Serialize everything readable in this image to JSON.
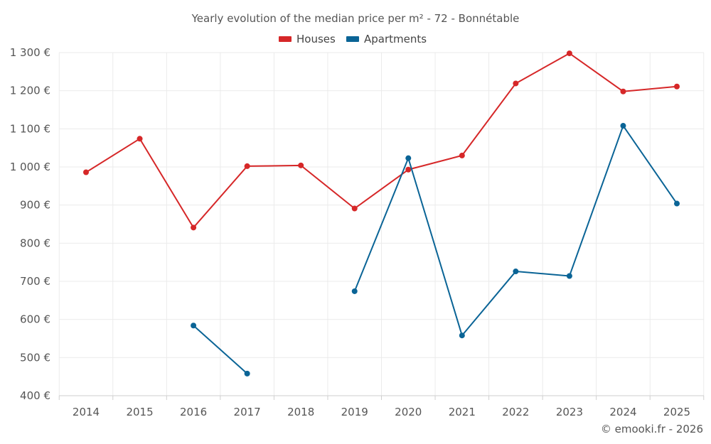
{
  "chart_data": {
    "type": "line",
    "title": "Yearly evolution of the median price per m² - 72 - Bonnétable",
    "categories": [
      "2014",
      "2015",
      "2016",
      "2017",
      "2018",
      "2019",
      "2020",
      "2021",
      "2022",
      "2023",
      "2024",
      "2025"
    ],
    "series": [
      {
        "name": "Houses",
        "color": "#d62728",
        "values": [
          986,
          1074,
          841,
          1002,
          1004,
          891,
          993,
          1030,
          1219,
          1298,
          1198,
          1211
        ]
      },
      {
        "name": "Apartments",
        "color": "#0a6496",
        "values": [
          null,
          null,
          584,
          458,
          null,
          674,
          1023,
          558,
          726,
          714,
          1108,
          904
        ]
      }
    ],
    "ylim": [
      400,
      1300
    ],
    "yticks": [
      400,
      500,
      600,
      700,
      800,
      900,
      1000,
      1100,
      1200,
      1300
    ],
    "ytick_labels": [
      "400 €",
      "500 €",
      "600 €",
      "700 €",
      "800 €",
      "900 €",
      "1 000 €",
      "1 100 €",
      "1 200 €",
      "1 300 €"
    ],
    "xlabel": "",
    "ylabel": "",
    "grid": true,
    "legend_position": "top-center"
  },
  "credit": "© emooki.fr - 2026"
}
